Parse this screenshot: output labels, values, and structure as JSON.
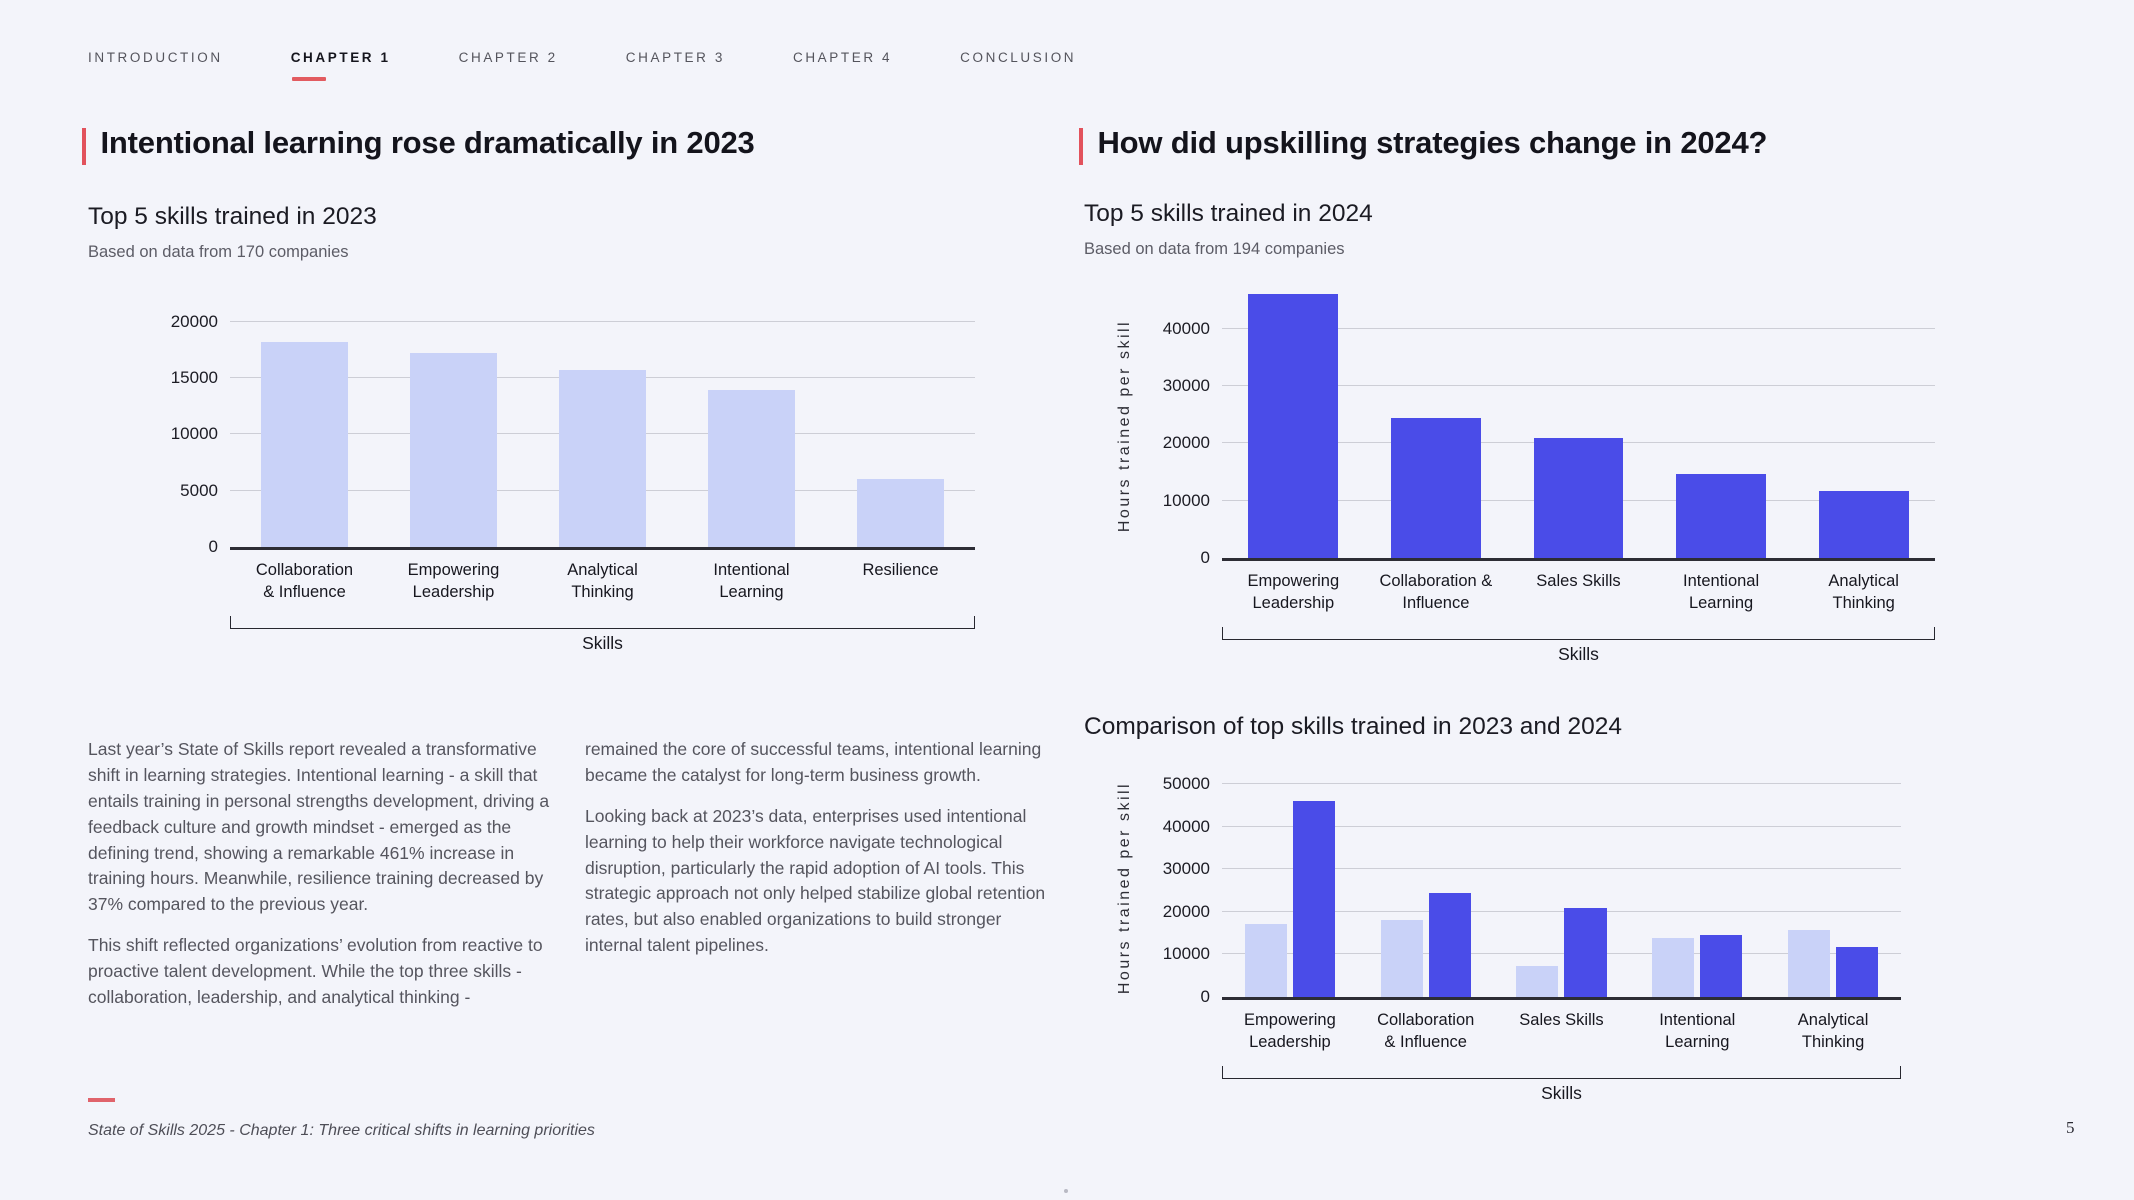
{
  "nav": {
    "active_index": 1,
    "items": [
      {
        "label": "INTRODUCTION"
      },
      {
        "label": "CHAPTER 1"
      },
      {
        "label": "CHAPTER 2"
      },
      {
        "label": "CHAPTER 3"
      },
      {
        "label": "CHAPTER 4"
      },
      {
        "label": "CONCLUSION"
      }
    ]
  },
  "left": {
    "heading": "Intentional learning rose dramatically in 2023",
    "text_col1": [
      "Last year’s State of Skills report revealed a transformative shift in learning strategies. Intentional learning - a skill that entails training in personal strengths development, driving a feedback culture and growth mindset - emerged as the defining trend, showing a remarkable 461% increase in training hours. Meanwhile, resilience training decreased by 37% compared to the previous year.",
      "This shift reflected organizations’ evolution from reactive to proactive talent development.  While the top three skills - collaboration, leadership, and analytical thinking -"
    ],
    "text_col2": [
      "remained the core of successful teams, intentional learning became the catalyst for long-term business growth.",
      "Looking back at 2023’s data, enterprises used intentional learning to help their workforce navigate technological disruption, particularly the rapid adoption of AI tools. This strategic approach not only helped stabilize global retention rates, but also enabled organizations to build stronger internal talent pipelines."
    ]
  },
  "right": {
    "heading": "How did upskilling strategies change in 2024?"
  },
  "footer": {
    "source": "State of Skills 2025 - Chapter 1: Three critical shifts in learning priorities",
    "page_number": "5"
  },
  "colors": {
    "background": "#f3f4fa",
    "accent_red": "#e2525c",
    "bar_2023_light": "#c9d2f8",
    "bar_2024_dark": "#4a4ce8",
    "gridline": "#cdced6",
    "axis": "#2d2d35"
  },
  "chart_data": [
    {
      "id": "skills-2023",
      "type": "bar",
      "title": "Top 5 skills trained in 2023",
      "caption": "Based on data from 170 companies",
      "categories": [
        "Collaboration\n& Influence",
        "Empowering\nLeadership",
        "Analytical\nThinking",
        "Intentional\nLearning",
        "Resilience"
      ],
      "values": [
        18200,
        17200,
        15700,
        13900,
        6000
      ],
      "bar_color": "#c9d2f8",
      "xlabel": "Skills",
      "ylabel": "",
      "yticks": [
        0,
        5000,
        10000,
        15000,
        20000
      ],
      "ylim": [
        0,
        20000
      ],
      "grid": true,
      "legend": "none"
    },
    {
      "id": "skills-2024",
      "type": "bar",
      "title": "Top 5 skills trained in 2024",
      "caption": "Based on data from 194 companies",
      "categories": [
        "Empowering\nLeadership",
        "Collaboration &\nInfluence",
        "Sales Skills",
        "Intentional\nLearning",
        "Analytical\nThinking"
      ],
      "values": [
        46000,
        24500,
        21000,
        14700,
        11700
      ],
      "bar_color": "#4a4ce8",
      "xlabel": "Skills",
      "ylabel": "Hours trained per skill",
      "yticks": [
        0,
        10000,
        20000,
        30000,
        40000
      ],
      "ylim": [
        0,
        40000
      ],
      "grid": true,
      "legend": "none"
    },
    {
      "id": "comparison-2023-2024",
      "type": "grouped-bar",
      "title": "Comparison of top skills trained in 2023 and 2024",
      "caption": "",
      "categories": [
        "Empowering\nLeadership",
        "Collaboration\n& Influence",
        "Sales Skills",
        "Intentional\nLearning",
        "Analytical\nThinking"
      ],
      "series": [
        {
          "name": "2023",
          "color": "#c9d2f8",
          "values": [
            17200,
            18200,
            7200,
            13900,
            15700
          ]
        },
        {
          "name": "2024",
          "color": "#4a4ce8",
          "values": [
            46000,
            24500,
            21000,
            14700,
            11700
          ]
        }
      ],
      "xlabel": "Skills",
      "ylabel": "Hours trained per skill",
      "yticks": [
        0,
        10000,
        20000,
        30000,
        40000,
        50000
      ],
      "ylim": [
        0,
        50000
      ],
      "grid": true,
      "legend": "none"
    }
  ]
}
